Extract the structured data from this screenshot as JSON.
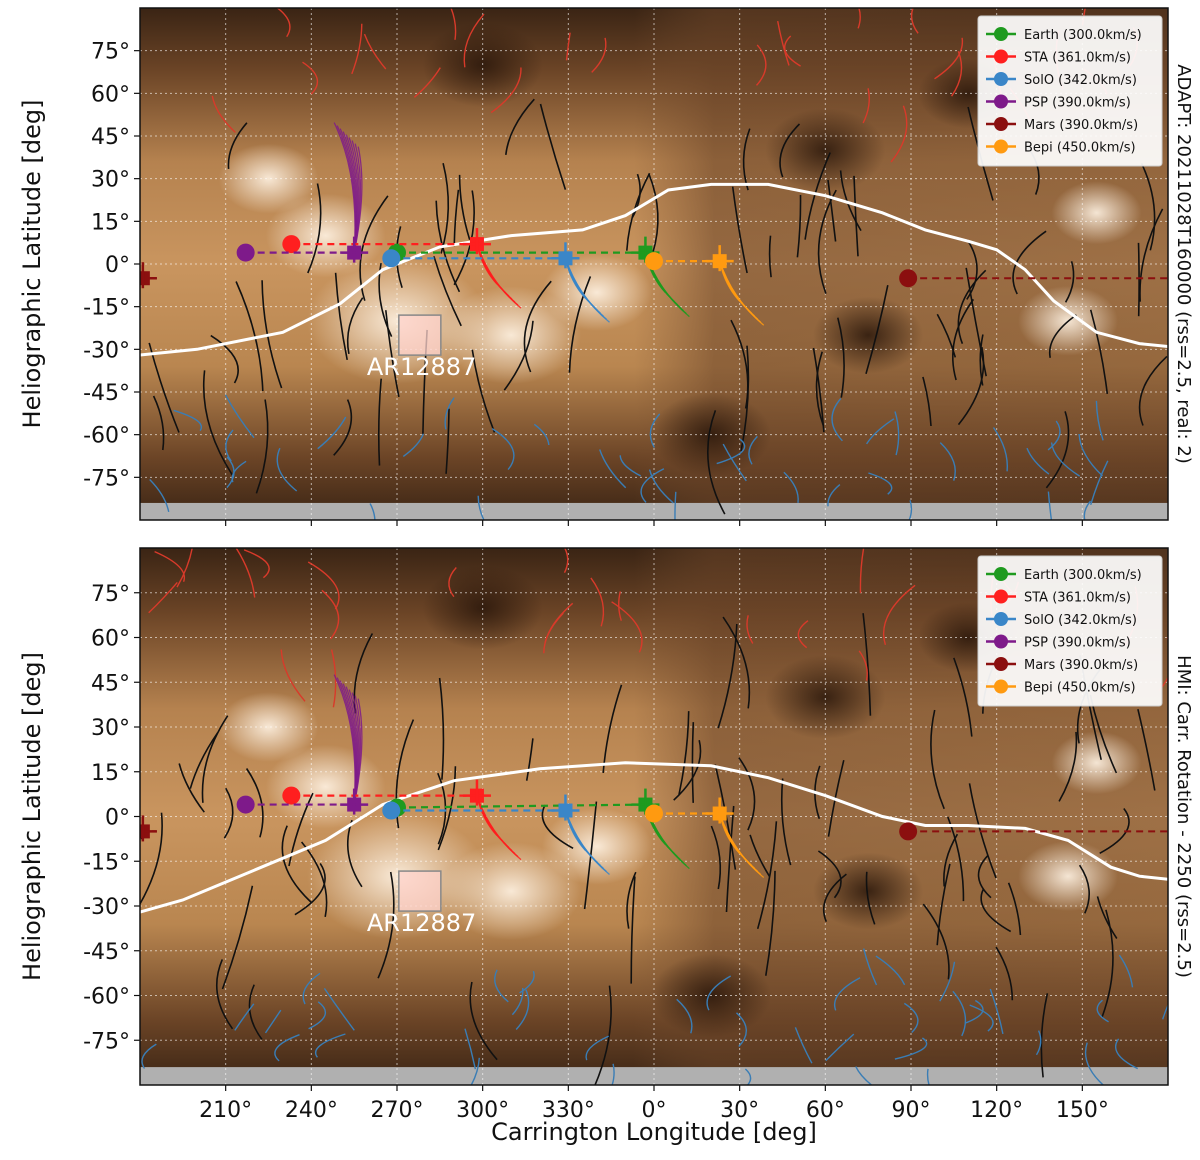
{
  "chart_data": {
    "type": "scatter",
    "xlabel": "Carrington Longitude [deg]",
    "x_ticks": [
      "210°",
      "240°",
      "270°",
      "300°",
      "330°",
      "0°",
      "30°",
      "60°",
      "90°",
      "120°",
      "150°"
    ],
    "x_tick_values": [
      210,
      240,
      270,
      300,
      330,
      360,
      390,
      420,
      450,
      480,
      510
    ],
    "xlim": [
      180,
      540
    ],
    "ylim": [
      -90,
      90
    ],
    "y_ticks": [
      "75°",
      "60°",
      "45°",
      "30°",
      "15°",
      "0°",
      "-15°",
      "-30°",
      "-45°",
      "-60°",
      "-75°"
    ],
    "y_tick_values": [
      75,
      60,
      45,
      30,
      15,
      0,
      -15,
      -30,
      -45,
      -60,
      -75
    ],
    "grid": true,
    "legend_position": "top-right",
    "panels": [
      {
        "ylabel": "Heliographic Latitude [deg]",
        "side_title": "ADAPT: 20211028T160000 (rss=2.5, real: 2)",
        "neutral_line": [
          [
            180,
            -32
          ],
          [
            200,
            -30
          ],
          [
            230,
            -24
          ],
          [
            250,
            -14
          ],
          [
            265,
            -2
          ],
          [
            285,
            6
          ],
          [
            310,
            10
          ],
          [
            335,
            12
          ],
          [
            350,
            17
          ],
          [
            365,
            26
          ],
          [
            380,
            28
          ],
          [
            400,
            28
          ],
          [
            420,
            24
          ],
          [
            440,
            18
          ],
          [
            455,
            12
          ],
          [
            470,
            8
          ],
          [
            480,
            5
          ],
          [
            490,
            -2
          ],
          [
            500,
            -13
          ],
          [
            515,
            -24
          ],
          [
            530,
            -28
          ],
          [
            540,
            -29
          ]
        ],
        "active_region": {
          "label": "AR12887",
          "lon": 278,
          "lat": -25
        },
        "series": [
          {
            "name": "Earth (300.0km/s)",
            "color": "#1f9a1f",
            "lon": 270,
            "lat": 4,
            "marker_lon": 357,
            "marker_lat": 4
          },
          {
            "name": "STA (361.0km/s)",
            "color": "#ff1f1f",
            "lon": 233,
            "lat": 7,
            "marker_lon": 298,
            "marker_lat": 7
          },
          {
            "name": "SolO (342.0km/s)",
            "color": "#3a86c8",
            "lon": 268,
            "lat": 2,
            "marker_lon": 329,
            "marker_lat": 2
          },
          {
            "name": "PSP (390.0km/s)",
            "color": "#7e1a8a",
            "lon": 217,
            "lat": 4,
            "marker_lon": 255,
            "marker_lat": 4
          },
          {
            "name": "Mars (390.0km/s)",
            "color": "#8b0f0f",
            "lon": 449,
            "lat": -5,
            "marker_lon": 181,
            "marker_lat": -5
          },
          {
            "name": "Bepi (450.0km/s)",
            "color": "#ff9a10",
            "lon": 360,
            "lat": 1,
            "marker_lon": 383,
            "marker_lat": 1
          }
        ]
      },
      {
        "ylabel": "Heliographic Latitude [deg]",
        "side_title": "HMI: Carr. Rotation - 2250 (rss=2.5)",
        "neutral_line": [
          [
            180,
            -32
          ],
          [
            195,
            -28
          ],
          [
            220,
            -18
          ],
          [
            245,
            -8
          ],
          [
            265,
            4
          ],
          [
            290,
            12
          ],
          [
            320,
            16
          ],
          [
            350,
            18
          ],
          [
            380,
            17
          ],
          [
            400,
            13
          ],
          [
            420,
            7
          ],
          [
            440,
            0
          ],
          [
            455,
            -3
          ],
          [
            470,
            -3
          ],
          [
            490,
            -4
          ],
          [
            505,
            -8
          ],
          [
            520,
            -17
          ],
          [
            530,
            -20
          ],
          [
            540,
            -21
          ]
        ],
        "active_region": {
          "label": "AR12887",
          "lon": 278,
          "lat": -25
        },
        "series": [
          {
            "name": "Earth (300.0km/s)",
            "color": "#1f9a1f",
            "lon": 270,
            "lat": 3,
            "marker_lon": 357,
            "marker_lat": 4
          },
          {
            "name": "STA (361.0km/s)",
            "color": "#ff1f1f",
            "lon": 233,
            "lat": 7,
            "marker_lon": 298,
            "marker_lat": 7
          },
          {
            "name": "SolO (342.0km/s)",
            "color": "#3a86c8",
            "lon": 268,
            "lat": 2,
            "marker_lon": 329,
            "marker_lat": 2
          },
          {
            "name": "PSP (390.0km/s)",
            "color": "#7e1a8a",
            "lon": 217,
            "lat": 4,
            "marker_lon": 255,
            "marker_lat": 4
          },
          {
            "name": "Mars (390.0km/s)",
            "color": "#8b0f0f",
            "lon": 449,
            "lat": -5,
            "marker_lon": 181,
            "marker_lat": -5
          },
          {
            "name": "Bepi (450.0km/s)",
            "color": "#ff9a10",
            "lon": 360,
            "lat": 1,
            "marker_lon": 383,
            "marker_lat": 1
          }
        ]
      }
    ]
  }
}
